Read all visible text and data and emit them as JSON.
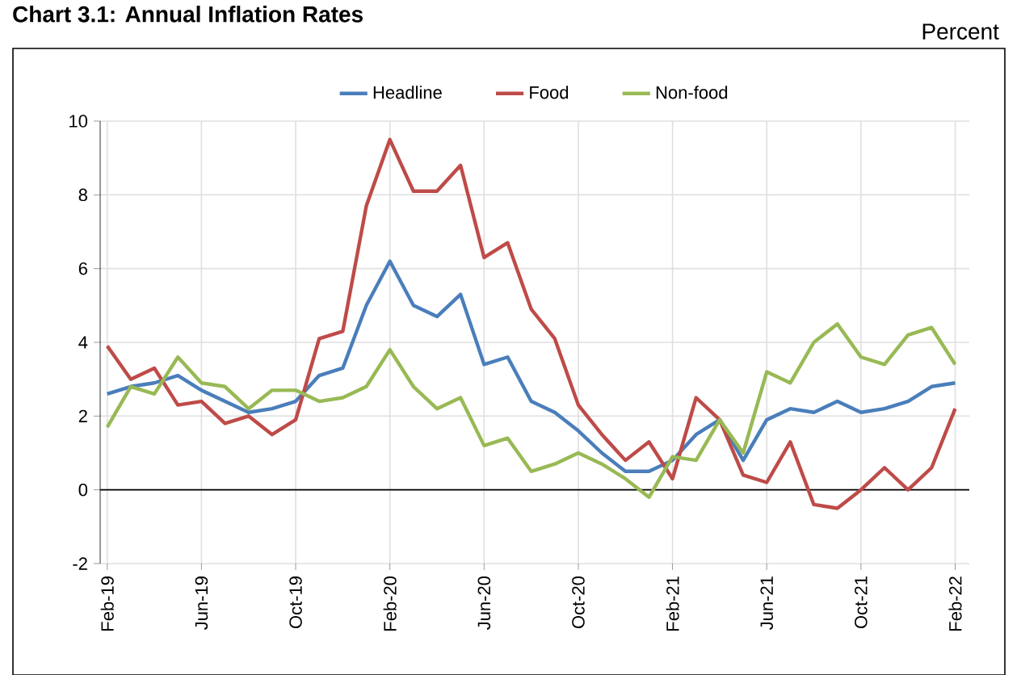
{
  "chart_data": {
    "type": "line",
    "title": "Chart 3.1: Annual Inflation Rates",
    "ylabel": "Percent",
    "categories": [
      "Feb-19",
      null,
      null,
      null,
      "Jun-19",
      null,
      null,
      null,
      "Oct-19",
      null,
      null,
      null,
      "Feb-20",
      null,
      null,
      null,
      "Jun-20",
      null,
      null,
      null,
      "Oct-20",
      null,
      null,
      null,
      "Feb-21",
      null,
      null,
      null,
      "Jun-21",
      null,
      null,
      null,
      "Oct-21",
      null,
      null,
      null,
      "Feb-22"
    ],
    "series": [
      {
        "name": "Headline",
        "color": "#4a7ebb",
        "values": [
          2.6,
          2.8,
          2.9,
          3.1,
          2.7,
          2.4,
          2.1,
          2.2,
          2.4,
          3.1,
          3.3,
          5.0,
          6.2,
          5.0,
          4.7,
          5.3,
          3.4,
          3.6,
          2.4,
          2.1,
          1.6,
          1.0,
          0.5,
          0.5,
          0.8,
          1.5,
          1.9,
          0.8,
          1.9,
          2.2,
          2.1,
          2.4,
          2.1,
          2.2,
          2.4,
          2.8,
          2.9
        ]
      },
      {
        "name": "Food",
        "color": "#be4b48",
        "values": [
          3.9,
          3.0,
          3.3,
          2.3,
          2.4,
          1.8,
          2.0,
          1.5,
          1.9,
          4.1,
          4.3,
          7.7,
          9.5,
          8.1,
          8.1,
          8.8,
          6.3,
          6.7,
          4.9,
          4.1,
          2.3,
          1.5,
          0.8,
          1.3,
          0.3,
          2.5,
          1.9,
          0.4,
          0.2,
          1.3,
          -0.4,
          -0.5,
          0.0,
          0.6,
          0.0,
          0.6,
          2.2
        ]
      },
      {
        "name": "Non-food",
        "color": "#98b954",
        "values": [
          1.7,
          2.8,
          2.6,
          3.6,
          2.9,
          2.8,
          2.2,
          2.7,
          2.7,
          2.4,
          2.5,
          2.8,
          3.8,
          2.8,
          2.2,
          2.5,
          1.2,
          1.4,
          0.5,
          0.7,
          1.0,
          0.7,
          0.3,
          -0.2,
          0.9,
          0.8,
          1.9,
          1.0,
          3.2,
          2.9,
          4.0,
          4.5,
          3.6,
          3.4,
          4.2,
          4.4,
          3.4
        ]
      }
    ],
    "ylim": [
      -2,
      10
    ],
    "yticks": [
      -2,
      0,
      2,
      4,
      6,
      8,
      10
    ],
    "grid": true,
    "legend": "top",
    "marker": "none",
    "line_style": "solid"
  }
}
